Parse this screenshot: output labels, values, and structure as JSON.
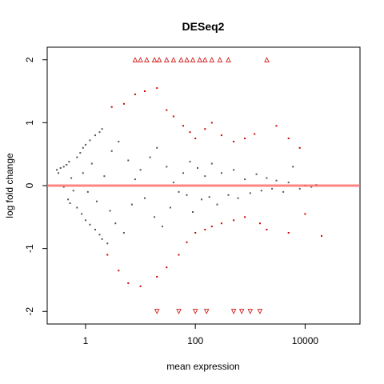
{
  "chart_data": {
    "type": "scatter",
    "title": "DESeq2",
    "xlabel": "mean expression",
    "ylabel": "log fold change",
    "x_scale": "log10",
    "xlim": [
      0.2,
      100000
    ],
    "ylim": [
      -2.2,
      2.2
    ],
    "x_ticks": [
      {
        "value": 1,
        "label": "1"
      },
      {
        "value": 100,
        "label": "100"
      },
      {
        "value": 10000,
        "label": "10000"
      }
    ],
    "y_ticks": [
      {
        "value": -2,
        "label": "-2"
      },
      {
        "value": -1,
        "label": "-1"
      },
      {
        "value": 0,
        "label": "0"
      },
      {
        "value": 1,
        "label": "1"
      },
      {
        "value": 2,
        "label": "2"
      }
    ],
    "grid": false,
    "legend": "none",
    "reference_line": {
      "y": 0,
      "color": "#ff6666"
    },
    "colors": {
      "not_significant": "#555555",
      "significant": "#cc0000",
      "frame": "#000000"
    },
    "series": [
      {
        "values": [
          [
            0.3,
            0.25
          ],
          [
            0.35,
            0.28
          ],
          [
            0.4,
            0.3
          ],
          [
            0.32,
            0.2
          ],
          [
            0.45,
            0.33
          ],
          [
            0.5,
            0.38
          ],
          [
            0.55,
            0.12
          ],
          [
            0.6,
            -0.08
          ],
          [
            0.4,
            -0.02
          ],
          [
            0.48,
            -0.22
          ],
          [
            0.52,
            -0.28
          ],
          [
            0.7,
            0.45
          ],
          [
            0.8,
            0.52
          ],
          [
            0.9,
            0.6
          ],
          [
            1.0,
            0.65
          ],
          [
            1.2,
            0.72
          ],
          [
            1.5,
            0.8
          ],
          [
            1.8,
            0.85
          ],
          [
            2.0,
            0.9
          ],
          [
            0.7,
            -0.35
          ],
          [
            0.85,
            -0.45
          ],
          [
            1.0,
            -0.55
          ],
          [
            1.2,
            -0.62
          ],
          [
            1.5,
            -0.7
          ],
          [
            1.8,
            -0.78
          ],
          [
            2.0,
            -0.85
          ],
          [
            2.5,
            -0.92
          ],
          [
            0.9,
            0.2
          ],
          [
            1.1,
            -0.1
          ],
          [
            1.3,
            0.35
          ],
          [
            1.6,
            -0.25
          ],
          [
            2.2,
            0.15
          ],
          [
            2.8,
            -0.4
          ],
          [
            3.0,
            0.55
          ],
          [
            3.5,
            -0.6
          ],
          [
            4.0,
            0.7
          ],
          [
            5.0,
            -0.75
          ],
          [
            6.0,
            0.4
          ],
          [
            7.0,
            -0.3
          ],
          [
            8.0,
            0.1
          ],
          [
            10,
            0.25
          ],
          [
            12,
            -0.2
          ],
          [
            15,
            0.45
          ],
          [
            18,
            -0.5
          ],
          [
            20,
            0.6
          ],
          [
            25,
            -0.65
          ],
          [
            30,
            0.3
          ],
          [
            35,
            -0.35
          ],
          [
            40,
            0.05
          ],
          [
            50,
            -0.1
          ],
          [
            60,
            0.2
          ],
          [
            70,
            -0.15
          ],
          [
            80,
            0.38
          ],
          [
            90,
            -0.42
          ],
          [
            110,
            0.28
          ],
          [
            130,
            -0.22
          ],
          [
            150,
            0.15
          ],
          [
            180,
            -0.18
          ],
          [
            200,
            0.35
          ],
          [
            250,
            -0.3
          ],
          [
            300,
            0.2
          ],
          [
            400,
            -0.15
          ],
          [
            500,
            0.25
          ],
          [
            600,
            -0.2
          ],
          [
            800,
            0.1
          ],
          [
            1000,
            -0.12
          ],
          [
            1300,
            0.18
          ],
          [
            1600,
            -0.08
          ],
          [
            2000,
            0.12
          ],
          [
            2500,
            -0.05
          ],
          [
            3000,
            0.08
          ],
          [
            4000,
            -0.1
          ],
          [
            5000,
            0.05
          ],
          [
            6000,
            0.3
          ],
          [
            8000,
            -0.05
          ],
          [
            10000,
            0.0
          ],
          [
            13000,
            -0.02
          ],
          [
            16000,
            0.01
          ]
        ]
      },
      {
        "values": [
          [
            3.0,
            1.25
          ],
          [
            5.0,
            1.3
          ],
          [
            8.0,
            1.45
          ],
          [
            12,
            1.5
          ],
          [
            20,
            1.55
          ],
          [
            30,
            1.2
          ],
          [
            40,
            1.1
          ],
          [
            60,
            0.95
          ],
          [
            80,
            0.85
          ],
          [
            100,
            0.75
          ],
          [
            150,
            0.9
          ],
          [
            200,
            1.0
          ],
          [
            300,
            0.8
          ],
          [
            500,
            0.7
          ],
          [
            800,
            0.75
          ],
          [
            1200,
            0.82
          ],
          [
            3000,
            0.95
          ],
          [
            5000,
            0.75
          ],
          [
            8000,
            0.6
          ],
          [
            2.5,
            -1.1
          ],
          [
            4.0,
            -1.35
          ],
          [
            6.0,
            -1.55
          ],
          [
            10,
            -1.6
          ],
          [
            20,
            -1.45
          ],
          [
            30,
            -1.3
          ],
          [
            50,
            -1.1
          ],
          [
            70,
            -0.9
          ],
          [
            100,
            -0.75
          ],
          [
            150,
            -0.7
          ],
          [
            200,
            -0.65
          ],
          [
            300,
            -0.6
          ],
          [
            500,
            -0.55
          ],
          [
            800,
            -0.5
          ],
          [
            1500,
            -0.6
          ],
          [
            2000,
            -0.7
          ],
          [
            5000,
            -0.75
          ],
          [
            10000,
            -0.45
          ],
          [
            20000,
            -0.8
          ]
        ]
      },
      {
        "values": [
          [
            8,
            2
          ],
          [
            10,
            2
          ],
          [
            13,
            2
          ],
          [
            18,
            2
          ],
          [
            22,
            2
          ],
          [
            30,
            2
          ],
          [
            40,
            2
          ],
          [
            55,
            2
          ],
          [
            70,
            2
          ],
          [
            90,
            2
          ],
          [
            120,
            2
          ],
          [
            150,
            2
          ],
          [
            200,
            2
          ],
          [
            280,
            2
          ],
          [
            400,
            2
          ],
          [
            2000,
            2
          ],
          [
            20,
            -2
          ],
          [
            50,
            -2
          ],
          [
            100,
            -2
          ],
          [
            160,
            -2
          ],
          [
            500,
            -2
          ],
          [
            700,
            -2
          ],
          [
            1000,
            -2
          ],
          [
            1500,
            -2
          ]
        ]
      }
    ]
  }
}
